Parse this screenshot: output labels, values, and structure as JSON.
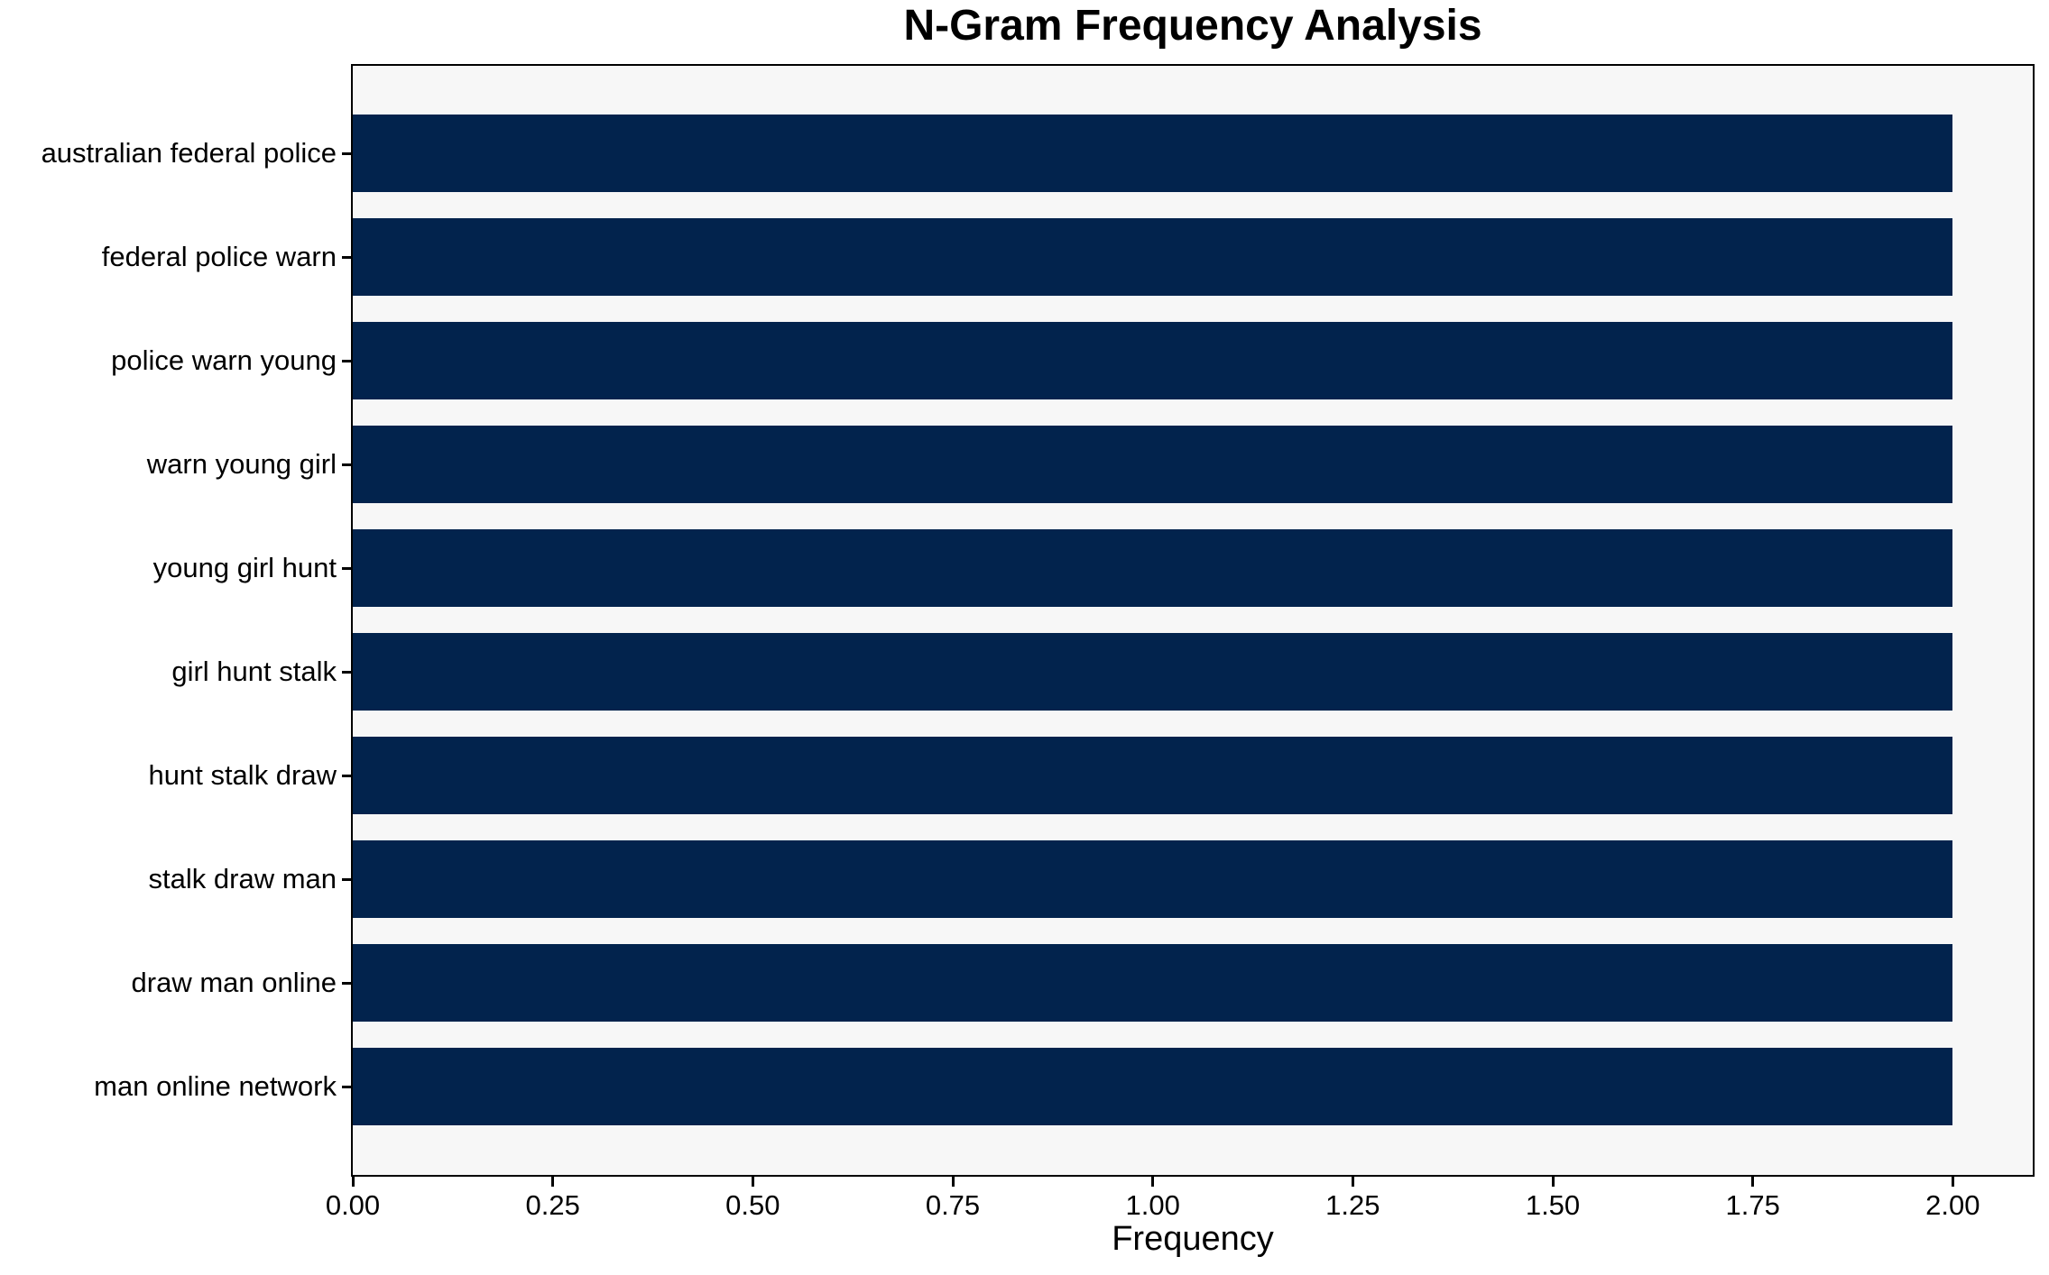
{
  "chart_data": {
    "type": "bar",
    "orientation": "horizontal",
    "title": "N-Gram Frequency Analysis",
    "xlabel": "Frequency",
    "ylabel": "",
    "categories": [
      "australian federal police",
      "federal police warn",
      "police warn young",
      "warn young girl",
      "young girl hunt",
      "girl hunt stalk",
      "hunt stalk draw",
      "stalk draw man",
      "draw man online",
      "man online network"
    ],
    "values": [
      2,
      2,
      2,
      2,
      2,
      2,
      2,
      2,
      2,
      2
    ],
    "xlim": [
      0,
      2.1
    ],
    "xticks": [
      {
        "value": 0.0,
        "label": "0.00"
      },
      {
        "value": 0.25,
        "label": "0.25"
      },
      {
        "value": 0.5,
        "label": "0.50"
      },
      {
        "value": 0.75,
        "label": "0.75"
      },
      {
        "value": 1.0,
        "label": "1.00"
      },
      {
        "value": 1.25,
        "label": "1.25"
      },
      {
        "value": 1.5,
        "label": "1.50"
      },
      {
        "value": 1.75,
        "label": "1.75"
      },
      {
        "value": 2.0,
        "label": "2.00"
      }
    ],
    "grid": false,
    "legend": null,
    "colors": {
      "bar": "#02234d",
      "plot_background": "#f7f7f7",
      "figure_background": "#ffffff",
      "text": "#000000",
      "spine": "#000000"
    }
  }
}
